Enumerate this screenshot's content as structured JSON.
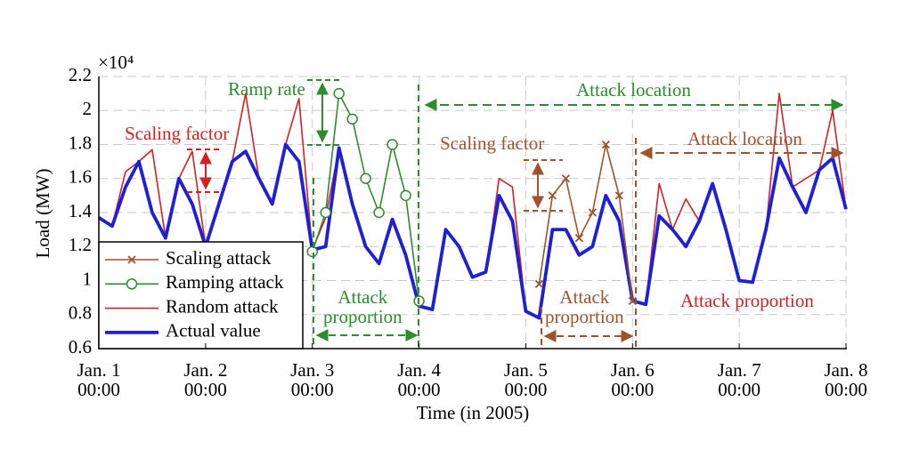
{
  "chart_data": {
    "type": "line",
    "y_label": "Load (MW)",
    "x_label": "Time (in 2005)",
    "y_multiplier": "×10⁴",
    "xlim": [
      0,
      168
    ],
    "ylim": [
      0.6,
      2.2
    ],
    "xticks": [
      {
        "value": 0,
        "label": "Jan. 1\n00:00"
      },
      {
        "value": 24,
        "label": "Jan. 2\n00:00"
      },
      {
        "value": 48,
        "label": "Jan. 3\n00:00"
      },
      {
        "value": 72,
        "label": "Jan. 4\n00:00"
      },
      {
        "value": 96,
        "label": "Jan. 5\n00:00"
      },
      {
        "value": 120,
        "label": "Jan. 6\n00:00"
      },
      {
        "value": 144,
        "label": "Jan. 7\n00:00"
      },
      {
        "value": 168,
        "label": "Jan. 8\n00:00"
      }
    ],
    "yticks": [
      0.6,
      0.8,
      1,
      1.2,
      1.4,
      1.6,
      1.8,
      2,
      2.2
    ],
    "grid": true,
    "legend": "lower left",
    "x": [
      0,
      3,
      6,
      9,
      12,
      15,
      18,
      21,
      24,
      27,
      30,
      33,
      36,
      39,
      42,
      45,
      48,
      51,
      54,
      57,
      60,
      63,
      66,
      69,
      72,
      75,
      78,
      81,
      84,
      87,
      90,
      93,
      96,
      99,
      102,
      105,
      108,
      111,
      114,
      117,
      120,
      123,
      126,
      129,
      132,
      135,
      138,
      141,
      144,
      147,
      150,
      153,
      156,
      159,
      162,
      165,
      168
    ],
    "series": [
      {
        "name": "Scaling attack",
        "color": "#a0522d",
        "marker": "x",
        "values": [
          null,
          null,
          null,
          null,
          null,
          null,
          null,
          null,
          null,
          null,
          null,
          null,
          null,
          null,
          null,
          null,
          null,
          null,
          null,
          null,
          null,
          null,
          null,
          null,
          null,
          null,
          null,
          null,
          null,
          null,
          null,
          null,
          null,
          0.98,
          1.5,
          1.6,
          1.25,
          1.4,
          1.8,
          1.5,
          0.88,
          null,
          null,
          null,
          null,
          null,
          null,
          null,
          null,
          null,
          null,
          null,
          null,
          null,
          null,
          null,
          null
        ]
      },
      {
        "name": "Ramping attack",
        "color": "#2e8b2e",
        "marker": "o",
        "values": [
          null,
          null,
          null,
          null,
          null,
          null,
          null,
          null,
          null,
          null,
          null,
          null,
          null,
          null,
          null,
          null,
          1.17,
          1.4,
          2.1,
          1.95,
          1.6,
          1.4,
          1.8,
          1.5,
          0.88,
          null,
          null,
          null,
          null,
          null,
          null,
          null,
          null,
          null,
          null,
          null,
          null,
          null,
          null,
          null,
          null,
          null,
          null,
          null,
          null,
          null,
          null,
          null,
          null,
          null,
          null,
          null,
          null,
          null,
          null,
          null,
          null
        ]
      },
      {
        "name": "Random attack",
        "color": "#d42020",
        "values": [
          1.37,
          1.32,
          1.64,
          1.7,
          1.77,
          1.25,
          1.6,
          1.76,
          1.2,
          1.45,
          1.7,
          2.1,
          1.6,
          1.45,
          1.8,
          2.07,
          1.18,
          1.37,
          1.78,
          1.45,
          1.2,
          1.1,
          1.36,
          1.15,
          0.85,
          0.83,
          1.3,
          1.2,
          1.02,
          1.05,
          1.6,
          1.55,
          0.82,
          0.78,
          1.3,
          1.3,
          1.15,
          1.2,
          1.5,
          1.35,
          0.88,
          0.86,
          1.57,
          1.3,
          1.48,
          1.35,
          1.57,
          1.3,
          1,
          0.99,
          1.3,
          2.1,
          1.55,
          1.6,
          1.65,
          2,
          1.42
        ]
      },
      {
        "name": "Actual value",
        "color": "#1f1fd6",
        "values": [
          1.37,
          1.32,
          1.55,
          1.7,
          1.4,
          1.25,
          1.6,
          1.45,
          1.2,
          1.45,
          1.7,
          1.76,
          1.6,
          1.45,
          1.8,
          1.7,
          1.18,
          1.2,
          1.78,
          1.45,
          1.2,
          1.1,
          1.36,
          1.15,
          0.85,
          0.83,
          1.3,
          1.2,
          1.02,
          1.05,
          1.5,
          1.35,
          0.82,
          0.78,
          1.3,
          1.3,
          1.15,
          1.2,
          1.5,
          1.35,
          0.88,
          0.86,
          1.38,
          1.3,
          1.2,
          1.35,
          1.57,
          1.3,
          1,
          0.99,
          1.3,
          1.72,
          1.55,
          1.4,
          1.65,
          1.72,
          1.42
        ]
      }
    ],
    "annotations": [
      "Ramp rate",
      "Scaling factor",
      "Attack location",
      "Attack\nproportion",
      "Scaling factor",
      "Attack location",
      "Attack\nproportion",
      "Attack proportion"
    ]
  }
}
